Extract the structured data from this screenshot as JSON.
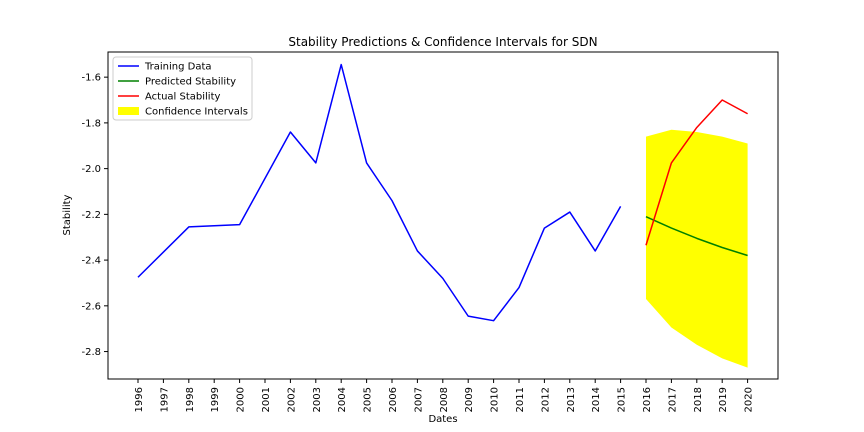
{
  "chart_data": {
    "type": "line",
    "title": "Stability Predictions & Confidence Intervals for SDN",
    "xlabel": "Dates",
    "ylabel": "Stability",
    "categories": [
      "1996",
      "1997",
      "1998",
      "1999",
      "2000",
      "2001",
      "2002",
      "2003",
      "2004",
      "2005",
      "2006",
      "2007",
      "2008",
      "2009",
      "2010",
      "2011",
      "2012",
      "2013",
      "2014",
      "2015",
      "2016",
      "2017",
      "2018",
      "2019",
      "2020"
    ],
    "ylim": [
      -2.92,
      -1.49
    ],
    "yticks": [
      "-1.6",
      "-1.8",
      "-2.0",
      "-2.2",
      "-2.4",
      "-2.6",
      "-2.8"
    ],
    "ytick_values": [
      -1.6,
      -1.8,
      -2.0,
      -2.2,
      -2.4,
      -2.6,
      -2.8
    ],
    "grid": false,
    "legend_position": "top-left",
    "series": [
      {
        "name": "Training Data",
        "color": "#0000ff",
        "x": [
          "1996",
          "1998",
          "2000",
          "2002",
          "2003",
          "2004",
          "2005",
          "2006",
          "2007",
          "2008",
          "2009",
          "2010",
          "2011",
          "2012",
          "2013",
          "2014",
          "2015"
        ],
        "values": [
          -2.475,
          -2.255,
          -2.245,
          -1.84,
          -1.975,
          -1.545,
          -1.975,
          -2.14,
          -2.36,
          -2.48,
          -2.645,
          -2.665,
          -2.52,
          -2.26,
          -2.19,
          -2.36,
          -2.165
        ]
      },
      {
        "name": "Predicted Stability",
        "color": "#008000",
        "x": [
          "2016",
          "2017",
          "2018",
          "2019",
          "2020"
        ],
        "values": [
          -2.21,
          -2.26,
          -2.305,
          -2.345,
          -2.38
        ]
      },
      {
        "name": "Actual Stability",
        "color": "#ff0000",
        "x": [
          "2016",
          "2017",
          "2018",
          "2019",
          "2020"
        ],
        "values": [
          -2.335,
          -1.975,
          -1.82,
          -1.7,
          -1.76
        ]
      }
    ],
    "confidence_interval": {
      "name": "Confidence Intervals",
      "color": "#ffff00",
      "x": [
        "2016",
        "2017",
        "2018",
        "2019",
        "2020"
      ],
      "upper": [
        -1.86,
        -1.83,
        -1.84,
        -1.86,
        -1.89
      ],
      "lower": [
        -2.57,
        -2.695,
        -2.77,
        -2.83,
        -2.87
      ]
    }
  }
}
